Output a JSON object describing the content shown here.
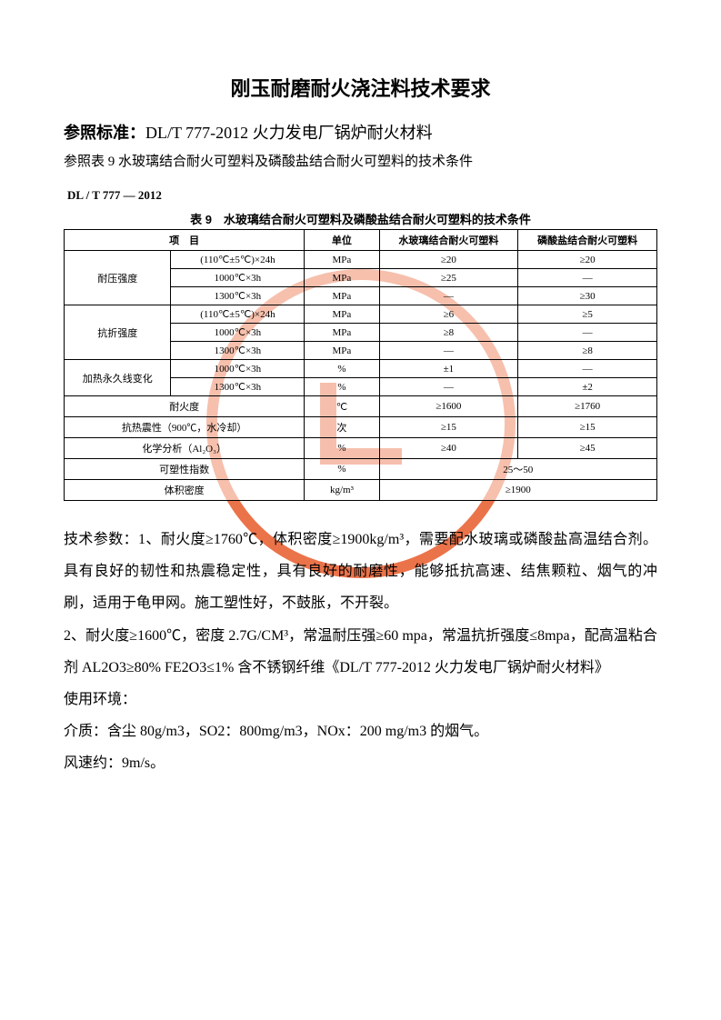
{
  "title": "刚玉耐磨耐火浇注料技术要求",
  "standard": {
    "label": "参照标准：",
    "code": "DL/T 777-2012",
    "name": " 火力发电厂锅炉耐火材料"
  },
  "ref_line": "参照表 9 水玻璃结合耐火可塑料及磷酸盐结合耐火可塑料的技术条件",
  "std_header": "DL / T 777 — 2012",
  "table": {
    "title": "表 9　水玻璃结合耐火可塑料及磷酸盐结合耐火可塑料的技术条件",
    "header": {
      "item": "项　目",
      "unit": "单位",
      "col1": "水玻璃结合耐火可塑料",
      "col2": "磷酸盐结合耐火可塑料"
    },
    "rows": [
      {
        "group": "耐压强度",
        "span": 3,
        "cond": "(110℃±5℃)×24h",
        "unit": "MPa",
        "v1": "≥20",
        "v2": "≥20"
      },
      {
        "cond": "1000℃×3h",
        "unit": "MPa",
        "v1": "≥25",
        "v2": "—"
      },
      {
        "cond": "1300℃×3h",
        "unit": "MPa",
        "v1": "—",
        "v2": "≥30"
      },
      {
        "group": "抗折强度",
        "span": 3,
        "cond": "(110℃±5℃)×24h",
        "unit": "MPa",
        "v1": "≥6",
        "v2": "≥5"
      },
      {
        "cond": "1000℃×3h",
        "unit": "MPa",
        "v1": "≥8",
        "v2": "—"
      },
      {
        "cond": "1300℃×3h",
        "unit": "MPa",
        "v1": "—",
        "v2": "≥8"
      },
      {
        "group": "加热永久线变化",
        "span": 2,
        "cond": "1000℃×3h",
        "unit": "%",
        "v1": "±1",
        "v2": "—"
      },
      {
        "cond": "1300℃×3h",
        "unit": "%",
        "v1": "—",
        "v2": "±2"
      },
      {
        "full": true,
        "label": "耐火度",
        "unit": "℃",
        "v1": "≥1600",
        "v2": "≥1760"
      },
      {
        "full": true,
        "label": "抗热震性（900℃，水冷却）",
        "unit": "次",
        "v1": "≥15",
        "v2": "≥15"
      },
      {
        "full": true,
        "label": "化学分析（Al₂O₃）",
        "unit": "%",
        "v1": "≥40",
        "v2": "≥45"
      },
      {
        "full": true,
        "label": "可塑性指数",
        "unit": "%",
        "merged_v": "25～50"
      },
      {
        "full": true,
        "label": "体积密度",
        "unit": "kg/m³",
        "merged_v": "≥1900"
      }
    ]
  },
  "body": {
    "p1": "技术参数：1、耐火度≥1760℃，体积密度≥1900kg/m³，需要配水玻璃或磷酸盐高温结合剂。具有良好的韧性和热震稳定性，具有良好的耐磨性，能够抵抗高速、结焦颗粒、烟气的冲刷，适用于龟甲网。施工塑性好，不鼓胀，不开裂。",
    "p2": "2、耐火度≥1600℃，密度 2.7G/CM³，常温耐压强≥60 mpa，常温抗折强度≤8mpa，配高温粘合剂 AL2O3≥80% FE2O3≤1% 含不锈钢纤维《DL/T 777-2012 火力发电厂锅炉耐火材料》",
    "p3": "使用环境：",
    "p4": "介质：含尘 80g/m3，SO2：800mg/m3，NOx：200 mg/m3 的烟气。",
    "p5": "风速约：9m/s。"
  },
  "colors": {
    "text": "#000000",
    "stamp": "#e85a2a",
    "background": "#ffffff",
    "border": "#000000"
  }
}
